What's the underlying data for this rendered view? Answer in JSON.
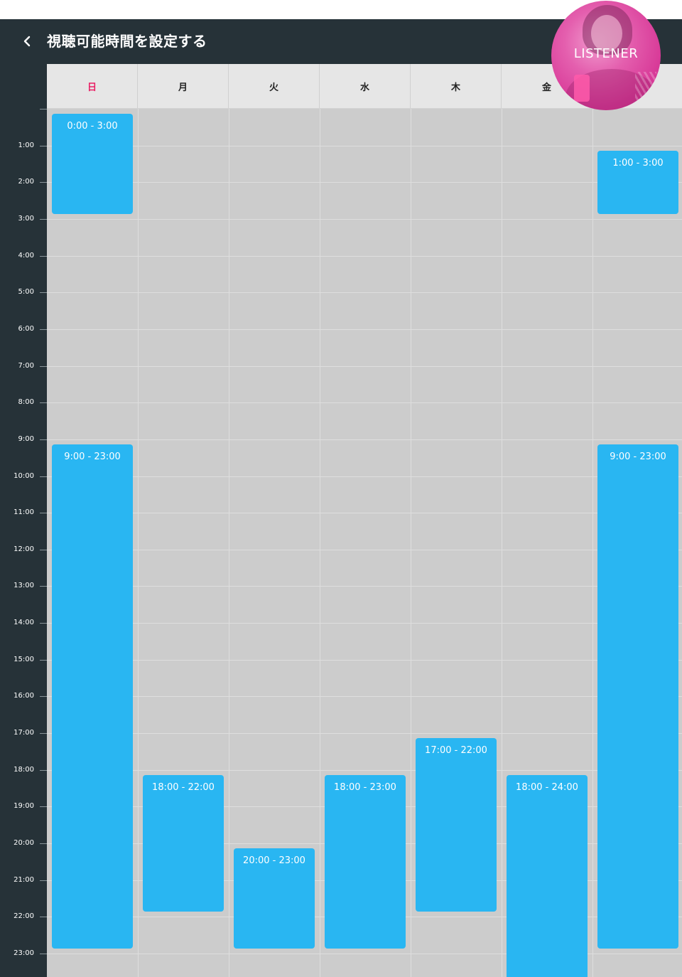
{
  "header": {
    "title": "視聴可能時間を設定する",
    "back_icon": "chevron-left-icon"
  },
  "badge": {
    "label": "LISTENER"
  },
  "days": [
    "日",
    "月",
    "火",
    "水",
    "木",
    "金",
    ""
  ],
  "hours": [
    "1:00",
    "2:00",
    "3:00",
    "4:00",
    "5:00",
    "6:00",
    "7:00",
    "8:00",
    "9:00",
    "10:00",
    "11:00",
    "12:00",
    "13:00",
    "14:00",
    "15:00",
    "16:00",
    "17:00",
    "18:00",
    "19:00",
    "20:00",
    "21:00",
    "22:00",
    "23:00"
  ],
  "slots": [
    {
      "day": 0,
      "start": 0,
      "end": 3,
      "label": "0:00 - 3:00"
    },
    {
      "day": 0,
      "start": 9,
      "end": 23,
      "label": "9:00 - 23:00"
    },
    {
      "day": 1,
      "start": 18,
      "end": 22,
      "label": "18:00 - 22:00"
    },
    {
      "day": 2,
      "start": 20,
      "end": 23,
      "label": "20:00 - 23:00"
    },
    {
      "day": 3,
      "start": 18,
      "end": 23,
      "label": "18:00 - 23:00"
    },
    {
      "day": 4,
      "start": 17,
      "end": 22,
      "label": "17:00 - 22:00"
    },
    {
      "day": 5,
      "start": 18,
      "end": 24,
      "label": "18:00 - 24:00"
    },
    {
      "day": 6,
      "start": 1,
      "end": 3,
      "label": "1:00 - 3:00"
    },
    {
      "day": 6,
      "start": 9,
      "end": 23,
      "label": "9:00 - 23:00"
    }
  ],
  "colors": {
    "topbar": "#263238",
    "slot": "#29b6f2",
    "sunday": "#e91e63",
    "grid": "#cccccc",
    "badge": "#d83a98"
  }
}
